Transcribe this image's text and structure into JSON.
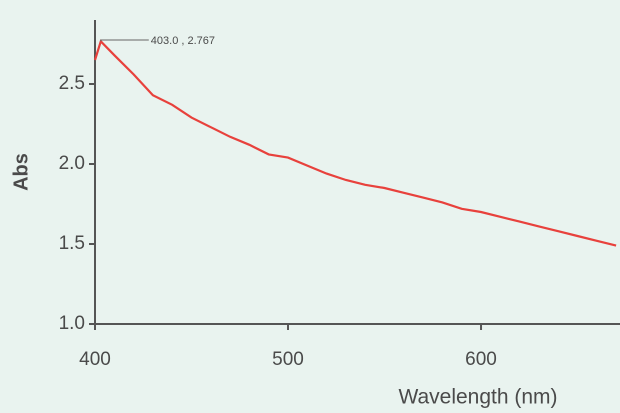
{
  "chart_data": {
    "type": "line",
    "x_label": "Wavelength (nm)",
    "y_label": "Abs",
    "annotation": "403.0 , 2.767",
    "x": [
      400,
      403,
      410,
      420,
      430,
      440,
      450,
      460,
      470,
      480,
      490,
      500,
      510,
      520,
      530,
      540,
      550,
      560,
      570,
      580,
      590,
      600,
      610,
      620,
      630,
      640,
      650,
      660,
      670
    ],
    "values": [
      2.65,
      2.767,
      2.68,
      2.56,
      2.43,
      2.37,
      2.29,
      2.23,
      2.17,
      2.12,
      2.06,
      2.04,
      1.99,
      1.94,
      1.9,
      1.87,
      1.85,
      1.82,
      1.79,
      1.76,
      1.72,
      1.7,
      1.67,
      1.64,
      1.61,
      1.58,
      1.55,
      1.52,
      1.49
    ],
    "color": "#e8413c",
    "xlim": [
      400,
      672
    ],
    "xticks": [
      400,
      500,
      600
    ],
    "ylim": [
      1.0,
      2.9
    ],
    "yticks": [
      {
        "value": 1.0,
        "label": "1.0"
      },
      1.5,
      {
        "value": 2.0,
        "label": "2.0"
      },
      2.5
    ]
  }
}
